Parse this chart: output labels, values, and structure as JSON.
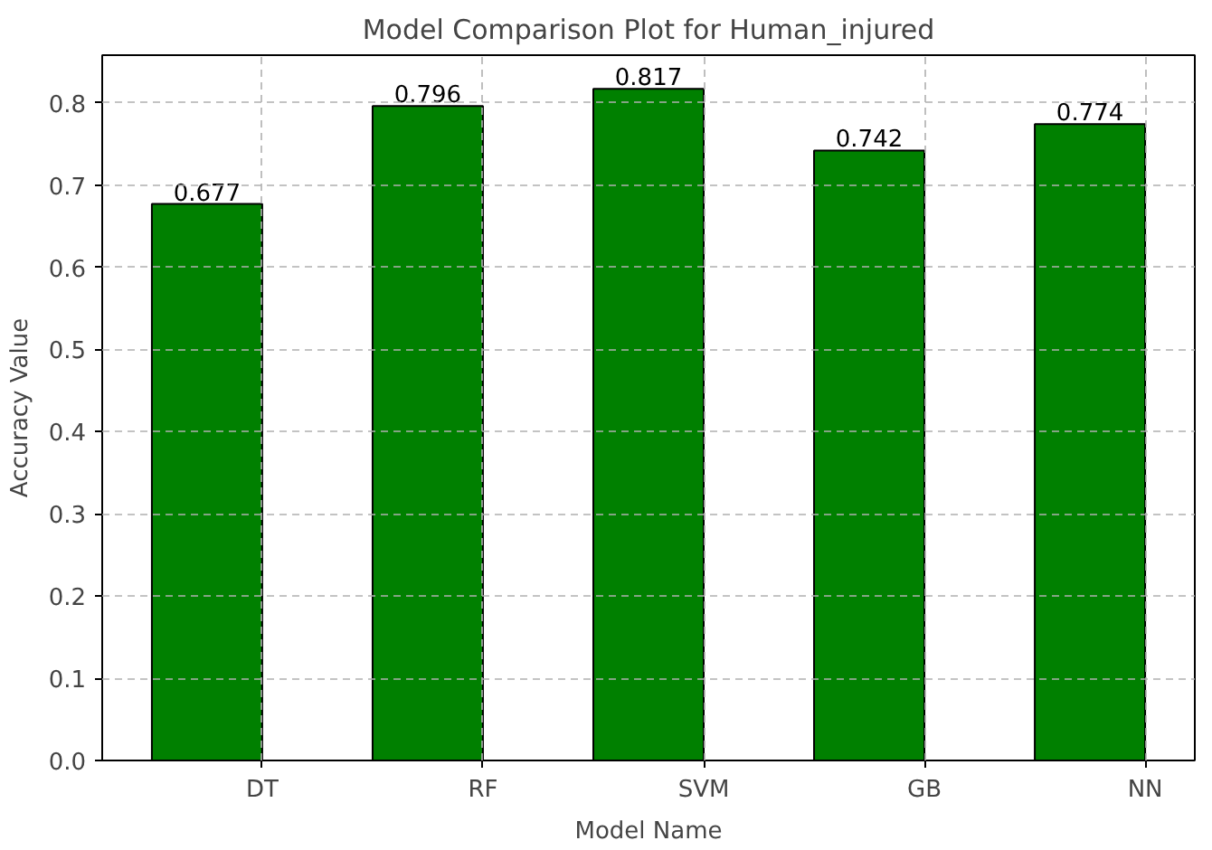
{
  "chart_data": {
    "type": "bar",
    "title": "Model Comparison Plot for Human_injured",
    "xlabel": "Model Name",
    "ylabel": "Accuracy Value",
    "categories": [
      "DT",
      "RF",
      "SVM",
      "GB",
      "NN"
    ],
    "values": [
      0.677,
      0.796,
      0.817,
      0.742,
      0.774
    ],
    "color": "#008000",
    "ylim": [
      0,
      0.858
    ],
    "yticks": [
      {
        "value": 0,
        "label": "0.0"
      },
      0.1,
      0.2,
      0.3,
      0.4,
      0.5,
      0.6,
      0.7,
      0.8
    ],
    "grid": true,
    "data_labels": true
  }
}
